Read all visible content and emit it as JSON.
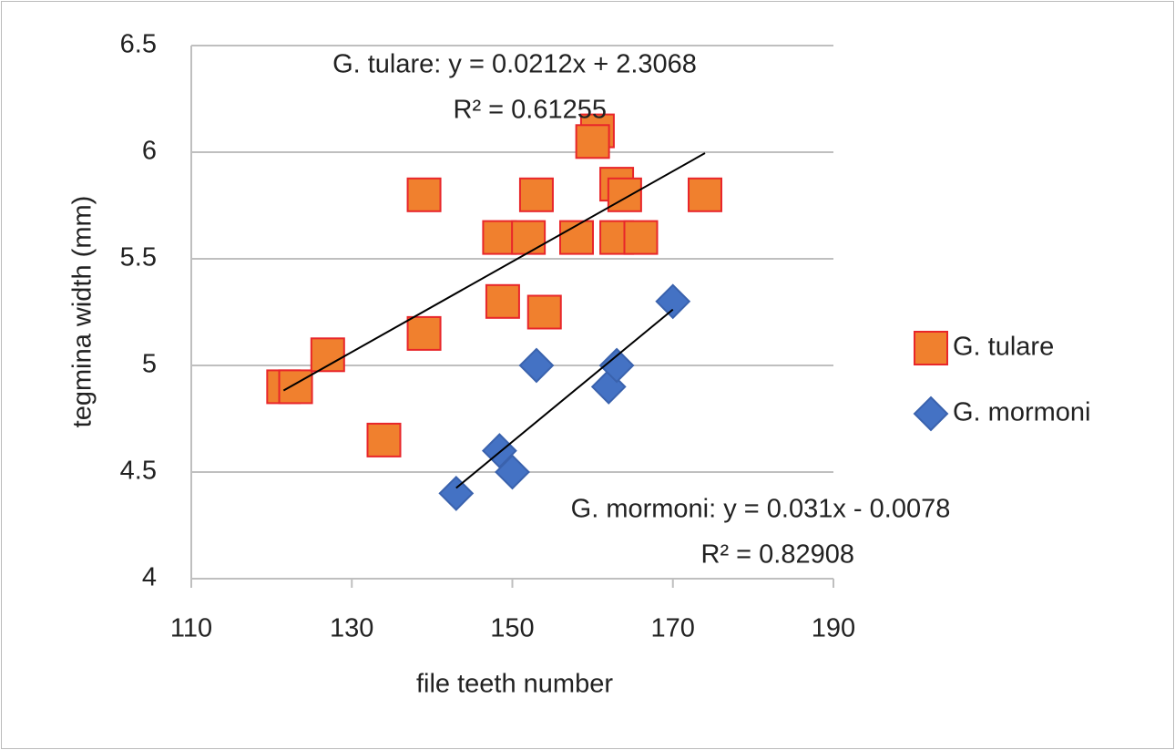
{
  "chart_data": {
    "type": "scatter",
    "xlabel": "file teeth number",
    "ylabel": "tegmina width (mm)",
    "xlim": [
      110,
      190
    ],
    "xticks": [
      110,
      130,
      150,
      170,
      190
    ],
    "ylim": [
      4,
      6.5
    ],
    "yticks": [
      4,
      4.5,
      5,
      5.5,
      6,
      6.5
    ],
    "grid": true,
    "legend": "right",
    "series": [
      {
        "name": "G. tulare",
        "color": "#f0802e",
        "stroke": "#e8262a",
        "marker": "square",
        "x": [
          121.5,
          123,
          127,
          134,
          139,
          139,
          148.4,
          148.8,
          152,
          153,
          154,
          158,
          160.6,
          160,
          163,
          163,
          164,
          166,
          174
        ],
        "values": [
          4.9,
          4.9,
          5.05,
          4.65,
          5.8,
          5.15,
          5.6,
          5.3,
          5.6,
          5.8,
          5.25,
          5.6,
          6.1,
          6.05,
          5.85,
          5.6,
          5.8,
          5.6,
          5.8
        ],
        "trendline": {
          "slope": 0.0212,
          "intercept": 2.3068,
          "equation": "G. tulare: y = 0.0212x + 2.3068",
          "r2": "R² = 0.61255"
        }
      },
      {
        "name": "G. mormoni",
        "color": "#4472c4",
        "stroke": "#3a62ad",
        "marker": "diamond",
        "x": [
          143,
          148.4,
          150,
          153,
          162,
          163,
          170
        ],
        "values": [
          4.4,
          4.6,
          4.5,
          5.0,
          4.9,
          5.0,
          5.3
        ],
        "trendline": {
          "slope": 0.031,
          "intercept": -0.0078,
          "equation": "G. mormoni: y = 0.031x - 0.0078",
          "r2": "R² = 0.82908"
        }
      }
    ]
  }
}
